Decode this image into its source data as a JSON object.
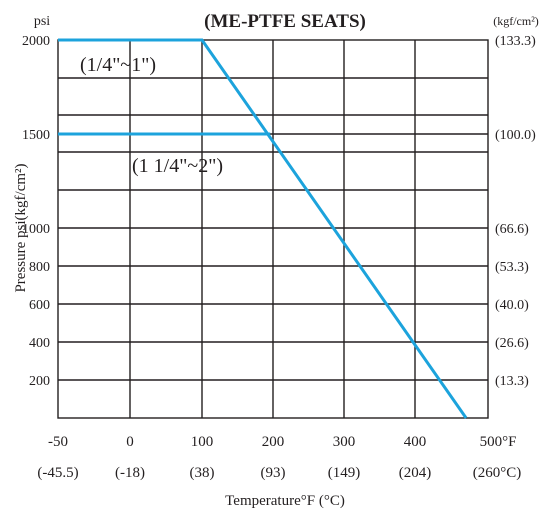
{
  "chart_data": {
    "type": "line",
    "title": "(ME-PTFE SEATS)",
    "ylabel": "Pressure psi(kgf/cm²)",
    "xlabel": "Temperature°F (°C)",
    "y_unit_left": "psi",
    "y_unit_right": "(kgf/cm²)",
    "x_ticks": [
      {
        "label": "-50",
        "sub": "(-45.5)"
      },
      {
        "label": "0",
        "sub": "(-18)"
      },
      {
        "label": "100",
        "sub": "(38)"
      },
      {
        "label": "200",
        "sub": "(93)"
      },
      {
        "label": "300",
        "sub": "(149)"
      },
      {
        "label": "400",
        "sub": "(204)"
      },
      {
        "label": "500°F",
        "sub": "(260°C)"
      }
    ],
    "y_ticks": [
      {
        "label": "200",
        "right": "(13.3)"
      },
      {
        "label": "400",
        "right": "(26.6)"
      },
      {
        "label": "600",
        "right": "(40.0)"
      },
      {
        "label": "800",
        "right": "(53.3)"
      },
      {
        "label": "1000",
        "right": "(66.6)"
      },
      {
        "label": "1500",
        "right": "(100.0)"
      },
      {
        "label": "2000",
        "right": "(133.3)"
      }
    ],
    "series": [
      {
        "name": "(1/4\"~1\")",
        "x": [
          -50,
          100,
          470
        ],
        "y": [
          2000,
          2000,
          0
        ]
      },
      {
        "name": "(1 1/4\"~2\")",
        "x": [
          -50,
          196
        ],
        "y": [
          1500,
          1500
        ]
      }
    ],
    "grid": true,
    "colors": {
      "series": "#1ca3dc",
      "grid": "#231f20",
      "text": "#231f20"
    }
  }
}
